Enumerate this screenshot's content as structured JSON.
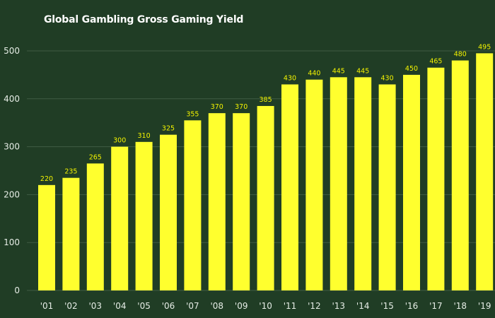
{
  "chart_data": {
    "type": "bar",
    "title": "Global Gambling Gross Gaming Yield",
    "xlabel": "",
    "ylabel": "",
    "categories": [
      "'01",
      "'02",
      "'03",
      "'04",
      "'05",
      "'06",
      "'07",
      "'08",
      "'09",
      "'10",
      "'11",
      "'12",
      "'13",
      "'14",
      "'15",
      "'16",
      "'17",
      "'18",
      "'19"
    ],
    "values": [
      220,
      235,
      265,
      300,
      310,
      325,
      355,
      370,
      370,
      385,
      430,
      440,
      445,
      445,
      430,
      450,
      465,
      480,
      495
    ],
    "ylim": [
      0,
      500
    ],
    "yticks": [
      0,
      100,
      200,
      300,
      400,
      500
    ],
    "grid": true,
    "legend": "none",
    "colors": {
      "background": "#203d25",
      "bar": "#ffff2e",
      "grid": "#3f5c44",
      "data_label": "#f3f300",
      "tick_label": "#e6ede6",
      "title": "#ffffff"
    }
  }
}
